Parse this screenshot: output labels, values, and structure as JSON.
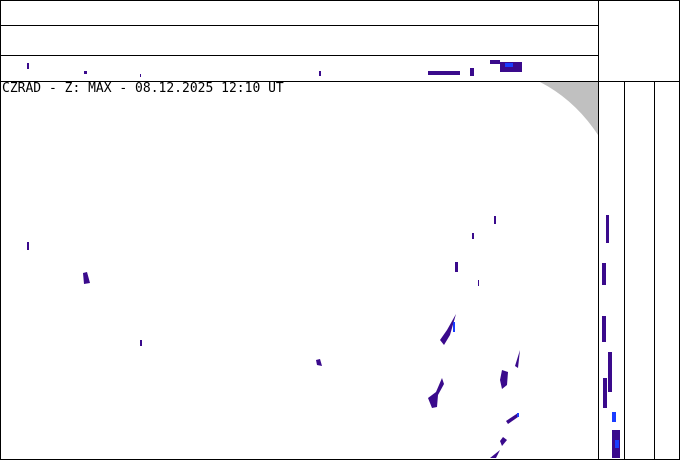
{
  "title": "CZRAD - Z: MAX - 08.12.2025 12:10 UT",
  "colors": {
    "echo_dark": "#3a0a8c",
    "echo_blue": "#1a3cff",
    "outside_range": "#c0c0c0",
    "lines": "#000000"
  }
}
